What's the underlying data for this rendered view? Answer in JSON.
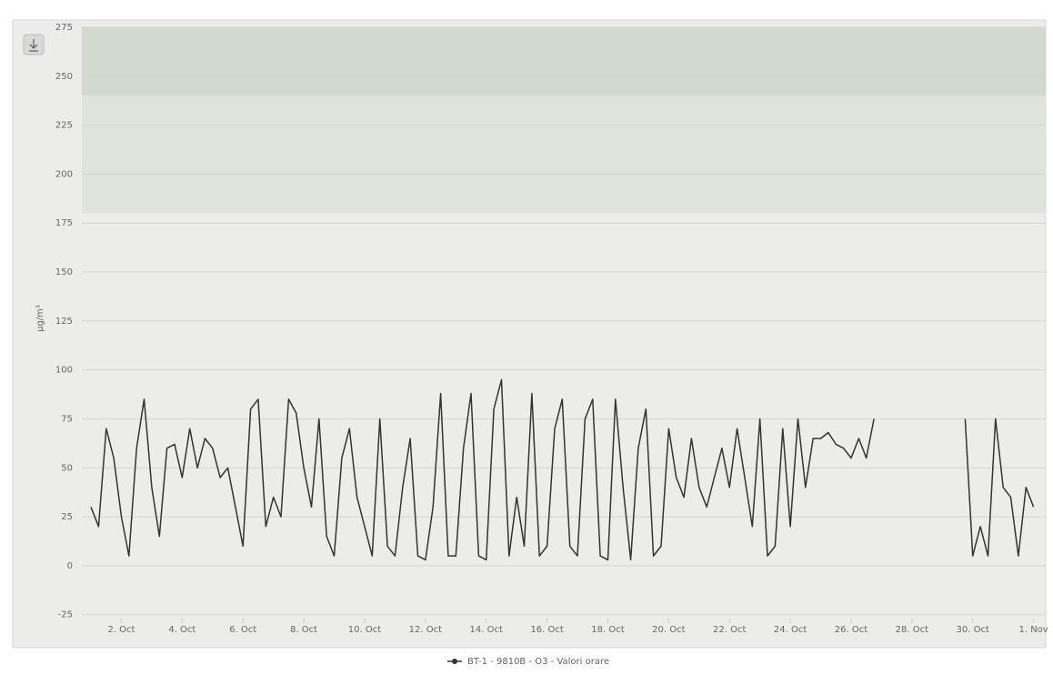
{
  "chart_data": {
    "type": "line",
    "y_label": "µg/m³",
    "xlim": [
      0.7,
      32.4
    ],
    "ylim": [
      -27,
      275
    ],
    "xticks": [
      {
        "value": 2,
        "label": "2. Oct"
      },
      {
        "value": 4,
        "label": "4. Oct"
      },
      {
        "value": 6,
        "label": "6. Oct"
      },
      {
        "value": 8,
        "label": "8. Oct"
      },
      {
        "value": 10,
        "label": "10. Oct"
      },
      {
        "value": 12,
        "label": "12. Oct"
      },
      {
        "value": 14,
        "label": "14. Oct"
      },
      {
        "value": 16,
        "label": "16. Oct"
      },
      {
        "value": 18,
        "label": "18. Oct"
      },
      {
        "value": 20,
        "label": "20. Oct"
      },
      {
        "value": 22,
        "label": "22. Oct"
      },
      {
        "value": 24,
        "label": "24. Oct"
      },
      {
        "value": 26,
        "label": "26. Oct"
      },
      {
        "value": 28,
        "label": "28. Oct"
      },
      {
        "value": 30,
        "label": "30. Oct"
      },
      {
        "value": 32,
        "label": "1. Nov"
      }
    ],
    "yticks": [
      -25,
      0,
      25,
      50,
      75,
      100,
      125,
      150,
      175,
      200,
      225,
      250,
      275
    ],
    "grid": true,
    "plot_bands": [
      {
        "from": 180,
        "to": 240,
        "color": "#dfe3dc"
      },
      {
        "from": 240,
        "to": 275,
        "color": "#d2dad0"
      }
    ],
    "x": [
      1,
      1.25,
      1.5,
      1.75,
      2,
      2.25,
      2.5,
      2.75,
      3,
      3.25,
      3.5,
      3.75,
      4,
      4.25,
      4.5,
      4.75,
      5,
      5.25,
      5.5,
      5.75,
      6,
      6.25,
      6.5,
      6.75,
      7,
      7.25,
      7.5,
      7.75,
      8,
      8.25,
      8.5,
      8.75,
      9,
      9.25,
      9.5,
      9.75,
      10,
      10.25,
      10.5,
      10.75,
      11,
      11.25,
      11.5,
      11.75,
      12,
      12.25,
      12.5,
      12.75,
      13,
      13.25,
      13.5,
      13.75,
      14,
      14.25,
      14.5,
      14.75,
      15,
      15.25,
      15.5,
      15.75,
      16,
      16.25,
      16.5,
      16.75,
      17,
      17.25,
      17.5,
      17.75,
      18,
      18.25,
      18.5,
      18.75,
      19,
      19.25,
      19.5,
      19.75,
      20,
      20.25,
      20.5,
      20.75,
      21,
      21.25,
      21.5,
      21.75,
      22,
      22.25,
      22.5,
      22.75,
      23,
      23.25,
      23.5,
      23.75,
      24,
      24.25,
      24.5,
      24.75,
      25,
      25.25,
      25.5,
      25.75,
      26,
      26.25,
      26.5,
      26.75,
      27,
      27.25,
      27.5,
      27.75,
      28,
      28.25,
      28.5,
      28.75,
      29,
      29.25,
      29.5,
      29.75,
      30,
      30.25,
      30.5,
      30.75,
      31,
      31.25,
      31.5,
      31.75,
      32
    ],
    "series": [
      {
        "name": "BT-1 - 9810B - O3 - Valori orare",
        "color": "#333333",
        "values": [
          30,
          20,
          70,
          55,
          25,
          5,
          60,
          85,
          40,
          15,
          60,
          62,
          45,
          70,
          50,
          65,
          60,
          45,
          50,
          30,
          10,
          80,
          85,
          20,
          35,
          25,
          85,
          78,
          50,
          30,
          75,
          15,
          5,
          55,
          70,
          35,
          20,
          5,
          75,
          10,
          5,
          40,
          65,
          5,
          3,
          30,
          88,
          5,
          5,
          60,
          88,
          5,
          3,
          80,
          95,
          5,
          35,
          10,
          88,
          5,
          10,
          70,
          85,
          10,
          5,
          75,
          85,
          5,
          3,
          85,
          40,
          3,
          60,
          80,
          5,
          10,
          70,
          45,
          35,
          65,
          40,
          30,
          45,
          60,
          40,
          70,
          45,
          20,
          75,
          5,
          10,
          70,
          20,
          75,
          40,
          65,
          65,
          68,
          62,
          60,
          55,
          65,
          55,
          75,
          null,
          null,
          null,
          null,
          null,
          null,
          null,
          null,
          null,
          null,
          null,
          75,
          5,
          20,
          5,
          75,
          40,
          35,
          5,
          40,
          30
        ]
      }
    ]
  }
}
